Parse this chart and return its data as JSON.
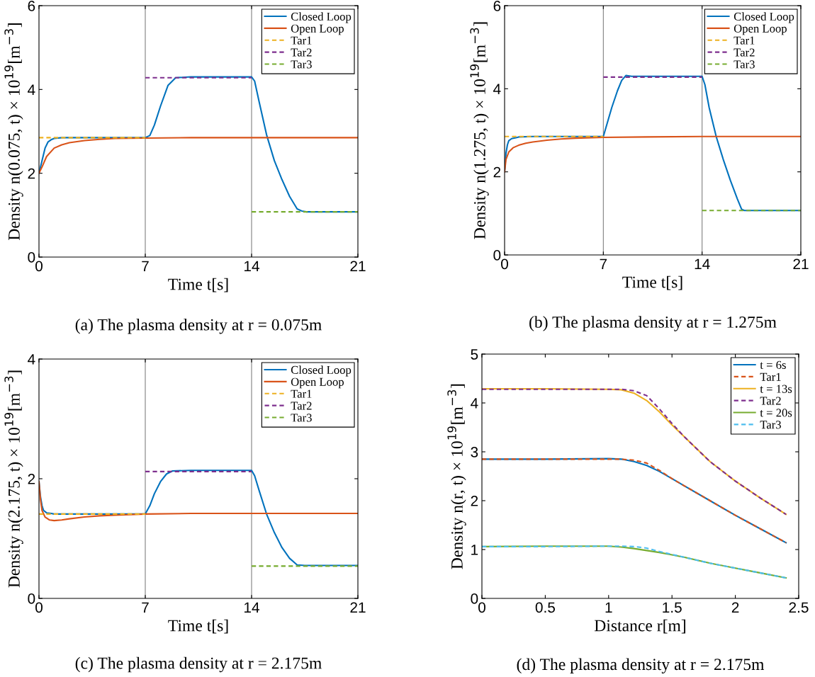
{
  "chart_data": [
    {
      "type": "line",
      "xlabel": "Time t[s]",
      "ylabel": "Density n(0.075, t) × 10$^{19}$[m$^{−3}$]",
      "xlim": [
        0,
        21
      ],
      "xticks": [
        0,
        7,
        14,
        21
      ],
      "ylim": [
        0,
        6
      ],
      "yticks": [
        0,
        2,
        4,
        6
      ],
      "grid": false,
      "legend": "top right",
      "annotations": [
        "(a) The plasma density at r = 0.075m"
      ],
      "ref_lines": [
        {
          "axis": "x",
          "value": 7,
          "color": "#808080"
        },
        {
          "axis": "x",
          "value": 14,
          "color": "#808080"
        }
      ],
      "series": [
        {
          "name": "Closed Loop",
          "color": "#0072bd",
          "line_style": "solid",
          "x": [
            0,
            0.2,
            0.4,
            0.6,
            0.8,
            1,
            1.5,
            2,
            3,
            5,
            7,
            7.3,
            7.6,
            8,
            8.5,
            9,
            10,
            12,
            14,
            14.2,
            14.5,
            15,
            15.5,
            16,
            16.5,
            17,
            17.3,
            17.6,
            18,
            19,
            21
          ],
          "values": [
            2,
            2.3,
            2.6,
            2.75,
            2.8,
            2.83,
            2.85,
            2.85,
            2.85,
            2.85,
            2.85,
            2.9,
            3.15,
            3.6,
            4.1,
            4.28,
            4.3,
            4.3,
            4.3,
            4.2,
            3.7,
            2.9,
            2.3,
            1.85,
            1.45,
            1.15,
            1.1,
            1.08,
            1.08,
            1.08,
            1.08
          ]
        },
        {
          "name": "Open Loop",
          "color": "#d95319",
          "line_style": "solid",
          "x": [
            0,
            0.2,
            0.5,
            1,
            1.5,
            2,
            3,
            4,
            5,
            7,
            10,
            14,
            21
          ],
          "values": [
            2,
            2.15,
            2.4,
            2.6,
            2.68,
            2.73,
            2.78,
            2.81,
            2.83,
            2.84,
            2.85,
            2.85,
            2.85
          ]
        },
        {
          "name": "Tar1",
          "color": "#edb120",
          "line_style": "dashed",
          "x": [
            0,
            7
          ],
          "values": [
            2.85,
            2.85
          ]
        },
        {
          "name": "Tar2",
          "color": "#7e2f8e",
          "line_style": "dashed",
          "x": [
            7,
            14
          ],
          "values": [
            4.28,
            4.28
          ]
        },
        {
          "name": "Tar3",
          "color": "#77ac30",
          "line_style": "dashed",
          "x": [
            14,
            21
          ],
          "values": [
            1.08,
            1.08
          ]
        }
      ]
    },
    {
      "type": "line",
      "xlabel": "Time t[s]",
      "ylabel": "Density n(1.275, t) × 10$^{19}$[m$^{−3}$]",
      "xlim": [
        0,
        21
      ],
      "xticks": [
        0,
        7,
        14,
        21
      ],
      "ylim": [
        0,
        6
      ],
      "yticks": [
        0,
        2,
        4,
        6
      ],
      "grid": false,
      "legend": "top right",
      "annotations": [
        "(b) The plasma density at r = 1.275m"
      ],
      "ref_lines": [
        {
          "axis": "x",
          "value": 7,
          "color": "#808080"
        },
        {
          "axis": "x",
          "value": 14,
          "color": "#808080"
        }
      ],
      "series": [
        {
          "name": "Closed Loop",
          "color": "#0072bd",
          "line_style": "solid",
          "x": [
            0,
            0.1,
            0.2,
            0.3,
            0.5,
            0.8,
            1,
            2,
            3,
            5,
            7,
            7.3,
            7.6,
            8,
            8.3,
            8.6,
            9,
            10,
            12,
            14,
            14.2,
            14.5,
            15,
            15.5,
            16,
            16.5,
            16.8,
            17,
            18,
            19,
            21
          ],
          "values": [
            2,
            2.45,
            2.65,
            2.75,
            2.8,
            2.82,
            2.84,
            2.85,
            2.85,
            2.85,
            2.85,
            3.2,
            3.55,
            3.95,
            4.2,
            4.32,
            4.3,
            4.3,
            4.3,
            4.3,
            4.1,
            3.55,
            2.85,
            2.3,
            1.8,
            1.35,
            1.1,
            1.07,
            1.07,
            1.07,
            1.07
          ]
        },
        {
          "name": "Open Loop",
          "color": "#d95319",
          "line_style": "solid",
          "x": [
            0,
            0.1,
            0.3,
            0.6,
            1,
            1.5,
            2,
            3,
            4,
            5,
            7,
            10,
            14,
            21
          ],
          "values": [
            2,
            2.3,
            2.48,
            2.58,
            2.64,
            2.69,
            2.72,
            2.76,
            2.79,
            2.81,
            2.83,
            2.84,
            2.85,
            2.85
          ]
        },
        {
          "name": "Tar1",
          "color": "#edb120",
          "line_style": "dashed",
          "x": [
            0,
            7
          ],
          "values": [
            2.85,
            2.85
          ]
        },
        {
          "name": "Tar2",
          "color": "#7e2f8e",
          "line_style": "dashed",
          "x": [
            7,
            14
          ],
          "values": [
            4.28,
            4.28
          ]
        },
        {
          "name": "Tar3",
          "color": "#77ac30",
          "line_style": "dashed",
          "x": [
            14,
            21
          ],
          "values": [
            1.07,
            1.07
          ]
        }
      ]
    },
    {
      "type": "line",
      "xlabel": "Time t[s]",
      "ylabel": "Density n(2.175, t) × 10$^{19}$[m$^{−3}$]",
      "xlim": [
        0,
        21
      ],
      "xticks": [
        0,
        7,
        14,
        21
      ],
      "ylim": [
        0,
        4
      ],
      "yticks": [
        0,
        2,
        4
      ],
      "grid": false,
      "legend": "top right",
      "annotations": [
        "(c) The plasma density at r = 2.175m"
      ],
      "ref_lines": [
        {
          "axis": "x",
          "value": 7,
          "color": "#808080"
        },
        {
          "axis": "x",
          "value": 14,
          "color": "#808080"
        }
      ],
      "series": [
        {
          "name": "Closed Loop",
          "color": "#0072bd",
          "line_style": "solid",
          "x": [
            0,
            0.1,
            0.2,
            0.3,
            0.5,
            0.8,
            1,
            2,
            4,
            7,
            7.3,
            7.6,
            8,
            8.4,
            8.8,
            10,
            12,
            14,
            14.2,
            14.5,
            15,
            15.5,
            16,
            16.5,
            17,
            17.5,
            18,
            21
          ],
          "values": [
            1.95,
            1.7,
            1.55,
            1.47,
            1.43,
            1.42,
            1.41,
            1.41,
            1.41,
            1.41,
            1.55,
            1.75,
            1.95,
            2.08,
            2.13,
            2.14,
            2.14,
            2.14,
            2.05,
            1.8,
            1.4,
            1.1,
            0.85,
            0.67,
            0.56,
            0.55,
            0.55,
            0.55
          ]
        },
        {
          "name": "Open Loop",
          "color": "#d95319",
          "line_style": "solid",
          "x": [
            0,
            0.1,
            0.2,
            0.4,
            0.7,
            1,
            1.5,
            2,
            3,
            4,
            5,
            7,
            10,
            14,
            21
          ],
          "values": [
            1.95,
            1.65,
            1.47,
            1.36,
            1.31,
            1.3,
            1.31,
            1.33,
            1.36,
            1.38,
            1.39,
            1.41,
            1.42,
            1.42,
            1.42
          ]
        },
        {
          "name": "Tar1",
          "color": "#edb120",
          "line_style": "dashed",
          "x": [
            0,
            7
          ],
          "values": [
            1.41,
            1.41
          ]
        },
        {
          "name": "Tar2",
          "color": "#7e2f8e",
          "line_style": "dashed",
          "x": [
            7,
            14
          ],
          "values": [
            2.12,
            2.12
          ]
        },
        {
          "name": "Tar3",
          "color": "#77ac30",
          "line_style": "dashed",
          "x": [
            14,
            21
          ],
          "values": [
            0.54,
            0.54
          ]
        }
      ]
    },
    {
      "type": "line",
      "xlabel": "Distance r[m]",
      "ylabel": "Density n(r, t) × 10$^{19}$[m$^{−3}$]",
      "xlim": [
        0,
        2.5
      ],
      "xticks": [
        0,
        0.5,
        1,
        1.5,
        2,
        2.5
      ],
      "ylim": [
        0,
        5
      ],
      "yticks": [
        0,
        1,
        2,
        3,
        4,
        5
      ],
      "grid": false,
      "legend": "top right",
      "annotations": [
        "(d) The plasma density at r = 2.175m"
      ],
      "x": [
        0,
        0.5,
        1,
        1.1,
        1.2,
        1.3,
        1.4,
        1.5,
        1.6,
        1.8,
        2,
        2.2,
        2.4
      ],
      "series": [
        {
          "name": "t = 6s",
          "color": "#0072bd",
          "line_style": "solid",
          "values": [
            2.85,
            2.85,
            2.86,
            2.85,
            2.8,
            2.72,
            2.6,
            2.45,
            2.3,
            2.0,
            1.7,
            1.42,
            1.14
          ]
        },
        {
          "name": "Tar1",
          "color": "#d95319",
          "line_style": "dashed",
          "values": [
            2.85,
            2.85,
            2.85,
            2.85,
            2.83,
            2.77,
            2.62,
            2.45,
            2.3,
            2.0,
            1.7,
            1.42,
            1.14
          ]
        },
        {
          "name": "t = 13s",
          "color": "#edb120",
          "line_style": "solid",
          "values": [
            4.29,
            4.29,
            4.28,
            4.27,
            4.2,
            4.05,
            3.82,
            3.55,
            3.3,
            2.8,
            2.4,
            2.05,
            1.72
          ]
        },
        {
          "name": "Tar2",
          "color": "#7e2f8e",
          "line_style": "dashed",
          "values": [
            4.28,
            4.28,
            4.28,
            4.28,
            4.25,
            4.15,
            3.88,
            3.58,
            3.3,
            2.8,
            2.4,
            2.05,
            1.72
          ]
        },
        {
          "name": "t = 20s",
          "color": "#77ac30",
          "line_style": "solid",
          "values": [
            1.06,
            1.07,
            1.07,
            1.05,
            1.02,
            0.98,
            0.94,
            0.89,
            0.84,
            0.72,
            0.62,
            0.52,
            0.42
          ]
        },
        {
          "name": "Tar3",
          "color": "#4dbeee",
          "line_style": "dashed",
          "values": [
            1.06,
            1.06,
            1.07,
            1.07,
            1.06,
            1.03,
            0.96,
            0.9,
            0.84,
            0.72,
            0.62,
            0.52,
            0.42
          ]
        }
      ]
    }
  ]
}
